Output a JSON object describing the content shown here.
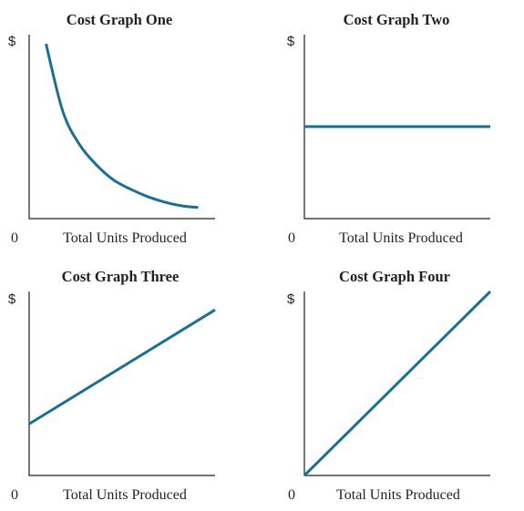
{
  "colors": {
    "series": "#1b6f95",
    "axis": "#231f20",
    "text": "#231f20"
  },
  "chart_data": [
    {
      "type": "line",
      "title": "Cost Graph One",
      "ylabel": "$",
      "xlabel": "Total Units Produced",
      "origin_label": "0",
      "series": [
        {
          "x": [
            0.1,
            0.2,
            0.3,
            0.4,
            0.5,
            0.6,
            0.7,
            0.8,
            0.9,
            1.0
          ],
          "y": [
            0.95,
            0.58,
            0.4,
            0.29,
            0.21,
            0.16,
            0.12,
            0.09,
            0.07,
            0.06
          ]
        }
      ],
      "xlim": [
        0,
        1.1
      ],
      "ylim": [
        0,
        1
      ],
      "grid": false
    },
    {
      "type": "line",
      "title": "Cost Graph Two",
      "ylabel": "$",
      "xlabel": "Total Units Produced",
      "origin_label": "0",
      "series": [
        {
          "x": [
            0,
            1.0
          ],
          "y": [
            0.5,
            0.5
          ]
        }
      ],
      "xlim": [
        0,
        1
      ],
      "ylim": [
        0,
        1
      ],
      "grid": false
    },
    {
      "type": "line",
      "title": "Cost Graph Three",
      "ylabel": "$",
      "xlabel": "Total Units Produced",
      "origin_label": "0",
      "series": [
        {
          "x": [
            0,
            1.0
          ],
          "y": [
            0.28,
            0.9
          ]
        }
      ],
      "xlim": [
        0,
        1
      ],
      "ylim": [
        0,
        1
      ],
      "grid": false
    },
    {
      "type": "line",
      "title": "Cost Graph Four",
      "ylabel": "$",
      "xlabel": "Total Units Produced",
      "origin_label": "0",
      "series": [
        {
          "x": [
            0,
            1.0
          ],
          "y": [
            0,
            1.0
          ]
        }
      ],
      "xlim": [
        0,
        1
      ],
      "ylim": [
        0,
        1
      ],
      "grid": false
    }
  ]
}
